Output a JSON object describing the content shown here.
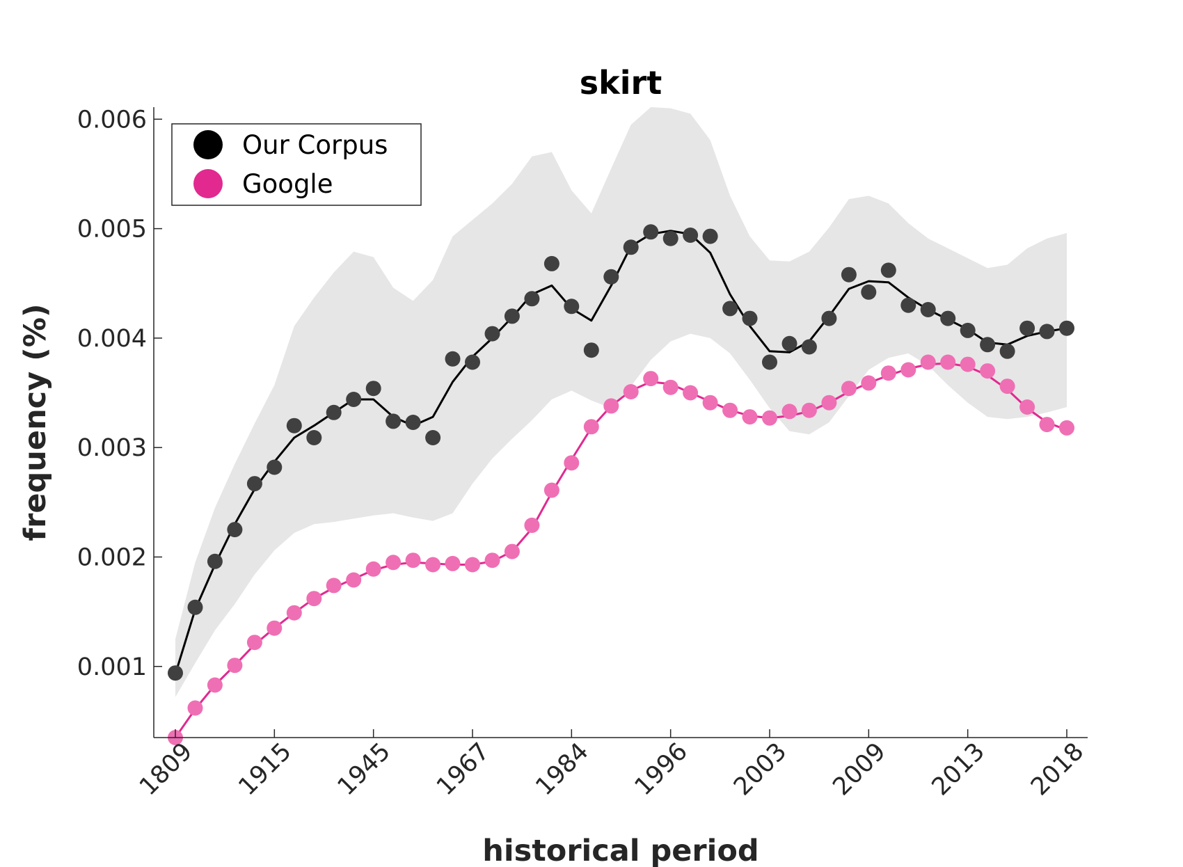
{
  "chart_data": {
    "type": "line",
    "title": "skirt",
    "xlabel": "historical period",
    "ylabel": "frequency (%)",
    "xtick_labels": [
      "1809",
      "1915",
      "1945",
      "1967",
      "1984",
      "1996",
      "2003",
      "2009",
      "2013",
      "2018"
    ],
    "ytick_labels": [
      "0.001",
      "0.002",
      "0.003",
      "0.004",
      "0.005",
      "0.006"
    ],
    "yticks": [
      0.001,
      0.002,
      0.003,
      0.004,
      0.005,
      0.006
    ],
    "ylim": [
      0.00035,
      0.00611
    ],
    "grid": false,
    "legend": {
      "position": "top-left"
    },
    "series": [
      {
        "name": "Our Corpus",
        "color": "#000000",
        "marker_color": "#404040",
        "points": [
          0.00094,
          0.00154,
          0.00196,
          0.00225,
          0.00267,
          0.00282,
          0.0032,
          0.00309,
          0.00332,
          0.00344,
          0.00354,
          0.00324,
          0.00323,
          0.00309,
          0.00381,
          0.00378,
          0.00404,
          0.0042,
          0.00436,
          0.00468,
          0.00429,
          0.00389,
          0.00456,
          0.00483,
          0.00497,
          0.00491,
          0.00494,
          0.00493,
          0.00427,
          0.00418,
          0.00378,
          0.00395,
          0.00392,
          0.00418,
          0.00458,
          0.00442,
          0.00462,
          0.0043,
          0.00426,
          0.00418,
          0.00407,
          0.00394,
          0.00388,
          0.00409,
          0.00406,
          0.00409
        ],
        "smooth": [
          0.00093,
          0.00152,
          0.00193,
          0.0023,
          0.00262,
          0.00287,
          0.00309,
          0.0032,
          0.00332,
          0.00344,
          0.00344,
          0.00328,
          0.0032,
          0.00328,
          0.0036,
          0.00383,
          0.004,
          0.00419,
          0.0044,
          0.00448,
          0.00427,
          0.00416,
          0.00448,
          0.00484,
          0.00495,
          0.00498,
          0.00495,
          0.00478,
          0.0044,
          0.00411,
          0.00388,
          0.00387,
          0.00397,
          0.0042,
          0.00445,
          0.00452,
          0.00451,
          0.00437,
          0.00426,
          0.00417,
          0.00408,
          0.00396,
          0.00394,
          0.00402,
          0.00406,
          0.00409
        ],
        "band_upper": [
          0.00125,
          0.00195,
          0.00245,
          0.00285,
          0.00322,
          0.00357,
          0.00411,
          0.00437,
          0.0046,
          0.00479,
          0.00474,
          0.00446,
          0.00434,
          0.00453,
          0.00493,
          0.00508,
          0.00523,
          0.00541,
          0.00566,
          0.0057,
          0.00535,
          0.00514,
          0.00555,
          0.00595,
          0.00611,
          0.0061,
          0.00605,
          0.00581,
          0.0053,
          0.00493,
          0.00471,
          0.0047,
          0.00479,
          0.00501,
          0.00527,
          0.0053,
          0.00523,
          0.00505,
          0.00491,
          0.00482,
          0.00473,
          0.00464,
          0.00467,
          0.00482,
          0.00491,
          0.00496
        ],
        "band_lower": [
          0.00072,
          0.00103,
          0.00133,
          0.00157,
          0.00184,
          0.00206,
          0.00222,
          0.0023,
          0.00232,
          0.00235,
          0.00238,
          0.0024,
          0.00236,
          0.00233,
          0.0024,
          0.00267,
          0.0029,
          0.00308,
          0.00325,
          0.00344,
          0.00352,
          0.00343,
          0.00336,
          0.00356,
          0.0038,
          0.00397,
          0.00404,
          0.004,
          0.00386,
          0.00362,
          0.00336,
          0.00315,
          0.00312,
          0.00323,
          0.00347,
          0.00371,
          0.00382,
          0.00386,
          0.00375,
          0.00357,
          0.00341,
          0.00328,
          0.00326,
          0.00328,
          0.00332,
          0.00337
        ]
      },
      {
        "name": "Google",
        "color": "#e12990",
        "marker_color": "#ef6fb4",
        "points": [
          0.00035,
          0.00062,
          0.00083,
          0.00101,
          0.00122,
          0.00135,
          0.00149,
          0.00162,
          0.00174,
          0.00179,
          0.00189,
          0.00195,
          0.00197,
          0.00193,
          0.00194,
          0.00193,
          0.00197,
          0.00205,
          0.00229,
          0.00261,
          0.00286,
          0.00319,
          0.00338,
          0.00351,
          0.00363,
          0.00355,
          0.0035,
          0.00341,
          0.00334,
          0.00328,
          0.00327,
          0.00333,
          0.00334,
          0.00341,
          0.00354,
          0.00359,
          0.00368,
          0.00371,
          0.00378,
          0.00378,
          0.00376,
          0.0037,
          0.00356,
          0.00337,
          0.00321,
          0.00318
        ],
        "smooth": [
          0.00035,
          0.00061,
          0.00083,
          0.00101,
          0.0012,
          0.00135,
          0.00149,
          0.00162,
          0.00172,
          0.0018,
          0.00188,
          0.00193,
          0.00195,
          0.00194,
          0.00193,
          0.00193,
          0.00196,
          0.00205,
          0.00226,
          0.00259,
          0.00289,
          0.00318,
          0.00338,
          0.00352,
          0.0036,
          0.00358,
          0.0035,
          0.00342,
          0.00334,
          0.00329,
          0.00327,
          0.00329,
          0.00333,
          0.00341,
          0.00351,
          0.00359,
          0.00366,
          0.00372,
          0.00376,
          0.00377,
          0.00374,
          0.00366,
          0.00353,
          0.00336,
          0.00323,
          0.00316
        ]
      }
    ]
  }
}
